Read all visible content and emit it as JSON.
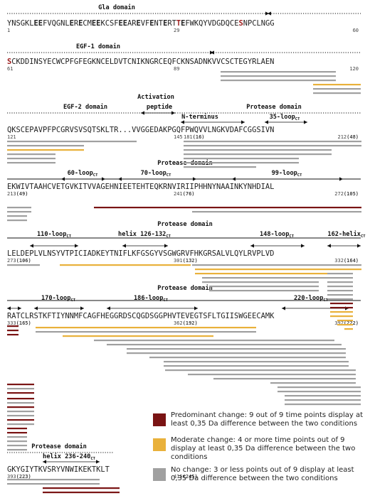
{
  "colors": {
    "predominant": "#7a1414",
    "moderate": "#e9b13b",
    "none": "#a0a0a0"
  },
  "blocks": [
    {
      "headers": [
        {
          "text": "Gla domain",
          "cx": 164
        }
      ],
      "seq": [
        {
          "t": "YNSGKL"
        },
        {
          "t": "EE",
          "c": "bold"
        },
        {
          "t": "FVQGNL"
        },
        {
          "t": "E",
          "c": "bold"
        },
        {
          "t": "R"
        },
        {
          "t": "E",
          "c": "bold"
        },
        {
          "t": "CM"
        },
        {
          "t": "EE",
          "c": "bold"
        },
        {
          "t": "KCSF"
        },
        {
          "t": "EE",
          "c": "bold"
        },
        {
          "t": "AR"
        },
        {
          "t": "E",
          "c": "bold"
        },
        {
          "t": "VF"
        },
        {
          "t": "E",
          "c": "bold"
        },
        {
          "t": "NT"
        },
        {
          "t": "E",
          "c": "bold"
        },
        {
          "t": "RT"
        },
        {
          "t": "T",
          "c": "red"
        },
        {
          "t": "E",
          "c": "bold"
        },
        {
          "t": "FWKQYVDGDQCE"
        },
        {
          "t": "S",
          "c": "red"
        },
        {
          "t": "NPCLNGG"
        }
      ],
      "nums": [
        {
          "t": "1",
          "a": "s"
        },
        {
          "t": "29",
          "a": "m"
        },
        {
          "t": "60",
          "a": "e"
        }
      ]
    },
    {
      "headers": [
        {
          "text": "EGF-1 domain",
          "cx": 138
        }
      ],
      "seq": [
        {
          "t": "S",
          "c": "red"
        },
        {
          "t": "CKDDINSYECWCPFGFEGKNCELDVTCNIKNGRCEQFCKNSADNKVVCSCTEGYRLAEN"
        }
      ],
      "nums": [
        {
          "t": "61",
          "a": "s"
        },
        {
          "t": "89",
          "a": "m"
        },
        {
          "t": "120",
          "a": "e"
        }
      ]
    },
    {
      "headers": [
        {
          "text": "EGF-2 domain",
          "cx": 120
        },
        {
          "text": "Activation",
          "cx": 219,
          "dy": -14
        },
        {
          "text": "peptide",
          "cx": 224
        },
        {
          "text": "Protease domain",
          "cx": 385
        },
        {
          "text": "N-terminus",
          "cx": 281,
          "dy": 14
        },
        {
          "text": "35-loop",
          "cx": 400,
          "dy": 14,
          "sub": "CT"
        }
      ],
      "seq": [
        {
          "t": "QKSCEPAVPFPCGRVSVSQTSKLTR...VVGGEDAKPGQFPWQVVLNGKVDAFCGGSIVN"
        }
      ],
      "nums": [
        {
          "t": "121",
          "a": "s"
        },
        {
          "t": "145",
          "a": "m"
        },
        {
          "t": "181",
          "sub": "(16)",
          "a": "m2"
        },
        {
          "t": "212",
          "sub": "(48)",
          "a": "e"
        }
      ]
    },
    {
      "headers": [
        {
          "text": "Protease domain",
          "cx": 260
        },
        {
          "text": "60-loop",
          "cx": 116,
          "dy": 14,
          "sub": "CT"
        },
        {
          "text": "70-loop",
          "cx": 219,
          "dy": 14,
          "sub": "CT"
        },
        {
          "text": "99-loop",
          "cx": 403,
          "dy": 14,
          "sub": "CT"
        }
      ],
      "seq": [
        {
          "t": "EKWIVTAAHCVETGVKITVVAGEHNIEETEHTEQKRNVIRIIPHHNYNAAINKYNHDIAL"
        }
      ],
      "nums": [
        {
          "t": "213",
          "sub": "(49)",
          "a": "s"
        },
        {
          "t": "241",
          "sub": "(76)",
          "a": "m"
        },
        {
          "t": "272",
          "sub": "(105)",
          "a": "e"
        }
      ]
    },
    {
      "headers": [
        {
          "text": "Protease domain",
          "cx": 260
        },
        {
          "text": "110-loop",
          "cx": 76,
          "dy": 14,
          "sub": "CT"
        },
        {
          "text": "helix 126-132",
          "cx": 203,
          "dy": 14,
          "sub": "CT"
        },
        {
          "text": "148-loop",
          "cx": 389,
          "dy": 14,
          "sub": "CT"
        },
        {
          "text": "162-helix",
          "cx": 487,
          "dy": 14,
          "sub": "CT"
        }
      ],
      "seq": [
        {
          "t": "LELDEPLVLNSYVTPICIADKEYTNIFLKFGSGYVSGWGRVFHKGRSALVLQYLRVPLVD"
        }
      ],
      "nums": [
        {
          "t": "273",
          "sub": "(106)",
          "a": "s"
        },
        {
          "t": "301",
          "sub": "(132)",
          "a": "m"
        },
        {
          "t": "332",
          "sub": "(164)",
          "a": "e"
        }
      ]
    },
    {
      "headers": [
        {
          "text": "Protease domain",
          "cx": 260
        },
        {
          "text": "170-loop",
          "cx": 82,
          "dy": 14,
          "sub": "CT"
        },
        {
          "text": "186-loop",
          "cx": 212,
          "dy": 14,
          "sub": "CT"
        },
        {
          "text": "220-loop",
          "cx": 437,
          "dy": 14,
          "sub": "CT"
        }
      ],
      "seq": [
        {
          "t": "RATCLRSTKFTIYNNMFCAGFHEGGRDSCQGDSGGPHVTEVEGTSFLTGIISWGEECAMK"
        }
      ],
      "nums": [
        {
          "t": "333",
          "sub": "(165)",
          "a": "s"
        },
        {
          "t": "362",
          "sub": "(192)",
          "a": "m"
        },
        {
          "t": "392",
          "sub": "(222)",
          "a": "e"
        }
      ]
    },
    {
      "headers": [
        {
          "text": "Protease domain",
          "cx": 83
        },
        {
          "text": "helix 236-240",
          "cx": 97,
          "dy": 14,
          "sub": "CT"
        }
      ],
      "seq": [
        {
          "t": "GKYGIYTKVSRYVNWIKEKTKLT"
        }
      ],
      "nums": [
        {
          "t": "393",
          "sub": "(223)",
          "a": "s"
        },
        {
          "t": "415",
          "sub": "(245)",
          "a": "m"
        }
      ]
    }
  ],
  "legend": [
    {
      "key": "predominant",
      "lines": [
        "Predominant change: 9 out of 9 time points display at",
        "least 0,35 Da difference between the two conditions"
      ]
    },
    {
      "key": "moderate",
      "lines": [
        "Moderate change: 4 or more time points out of 9",
        "display at least 0,35 Da difference between the two",
        "conditions"
      ]
    },
    {
      "key": "none",
      "lines": [
        "No change: 3 or less points out of 9 display at least",
        "0,35 Da difference between the two conditions"
      ]
    }
  ]
}
